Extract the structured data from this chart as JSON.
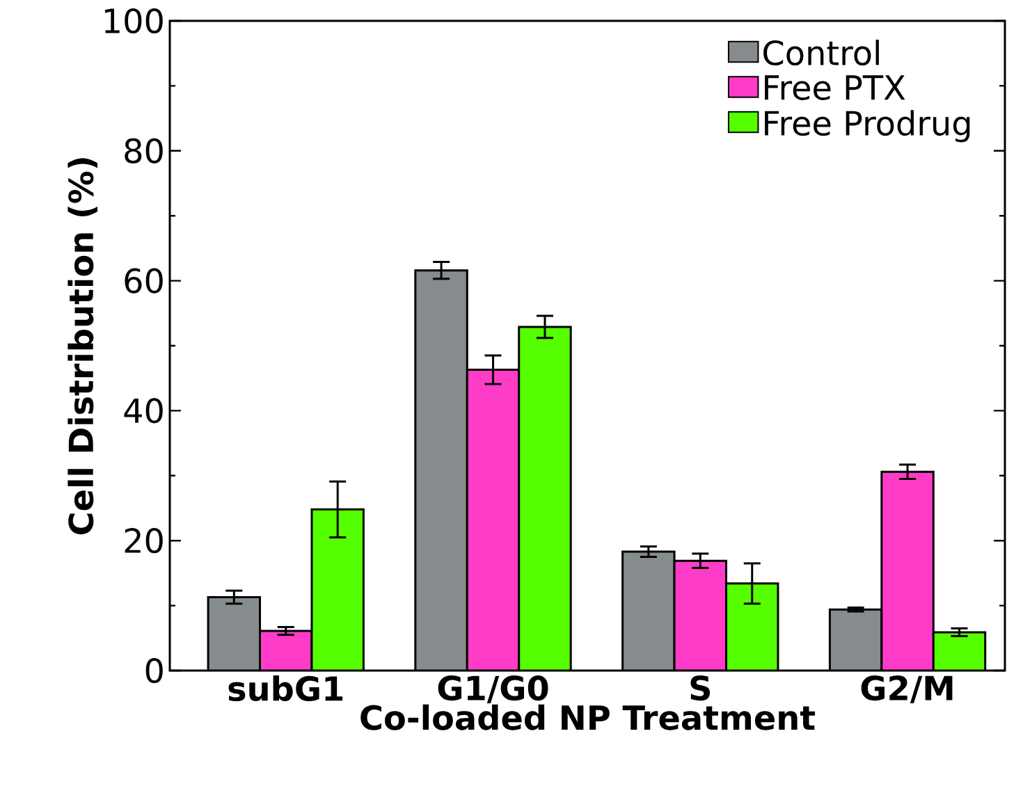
{
  "chart_data": {
    "type": "bar",
    "xlabel": "Co-loaded NP Treatment",
    "ylabel": "Cell Distribution (%)",
    "categories": [
      "subG1",
      "G1/G0",
      "S",
      "G2/M"
    ],
    "series": [
      {
        "name": "Control",
        "color": "#868b8d",
        "values": [
          11.3,
          61.6,
          18.3,
          9.4
        ],
        "errors": [
          1,
          1.3,
          0.8,
          0.3
        ]
      },
      {
        "name": "Free PTX",
        "color": "#ff3cc8",
        "values": [
          6.1,
          46.3,
          16.9,
          30.6
        ],
        "errors": [
          0.6,
          2.2,
          1.1,
          1.1
        ]
      },
      {
        "name": "Free Prodrug",
        "color": "#55ff00",
        "values": [
          24.8,
          52.9,
          13.4,
          5.9
        ],
        "errors": [
          4.3,
          1.7,
          3.1,
          0.6
        ]
      }
    ],
    "ylim": [
      0,
      100
    ],
    "yticks": [
      0,
      20,
      40,
      60,
      80,
      100
    ],
    "grid": false,
    "legend": "top right"
  }
}
